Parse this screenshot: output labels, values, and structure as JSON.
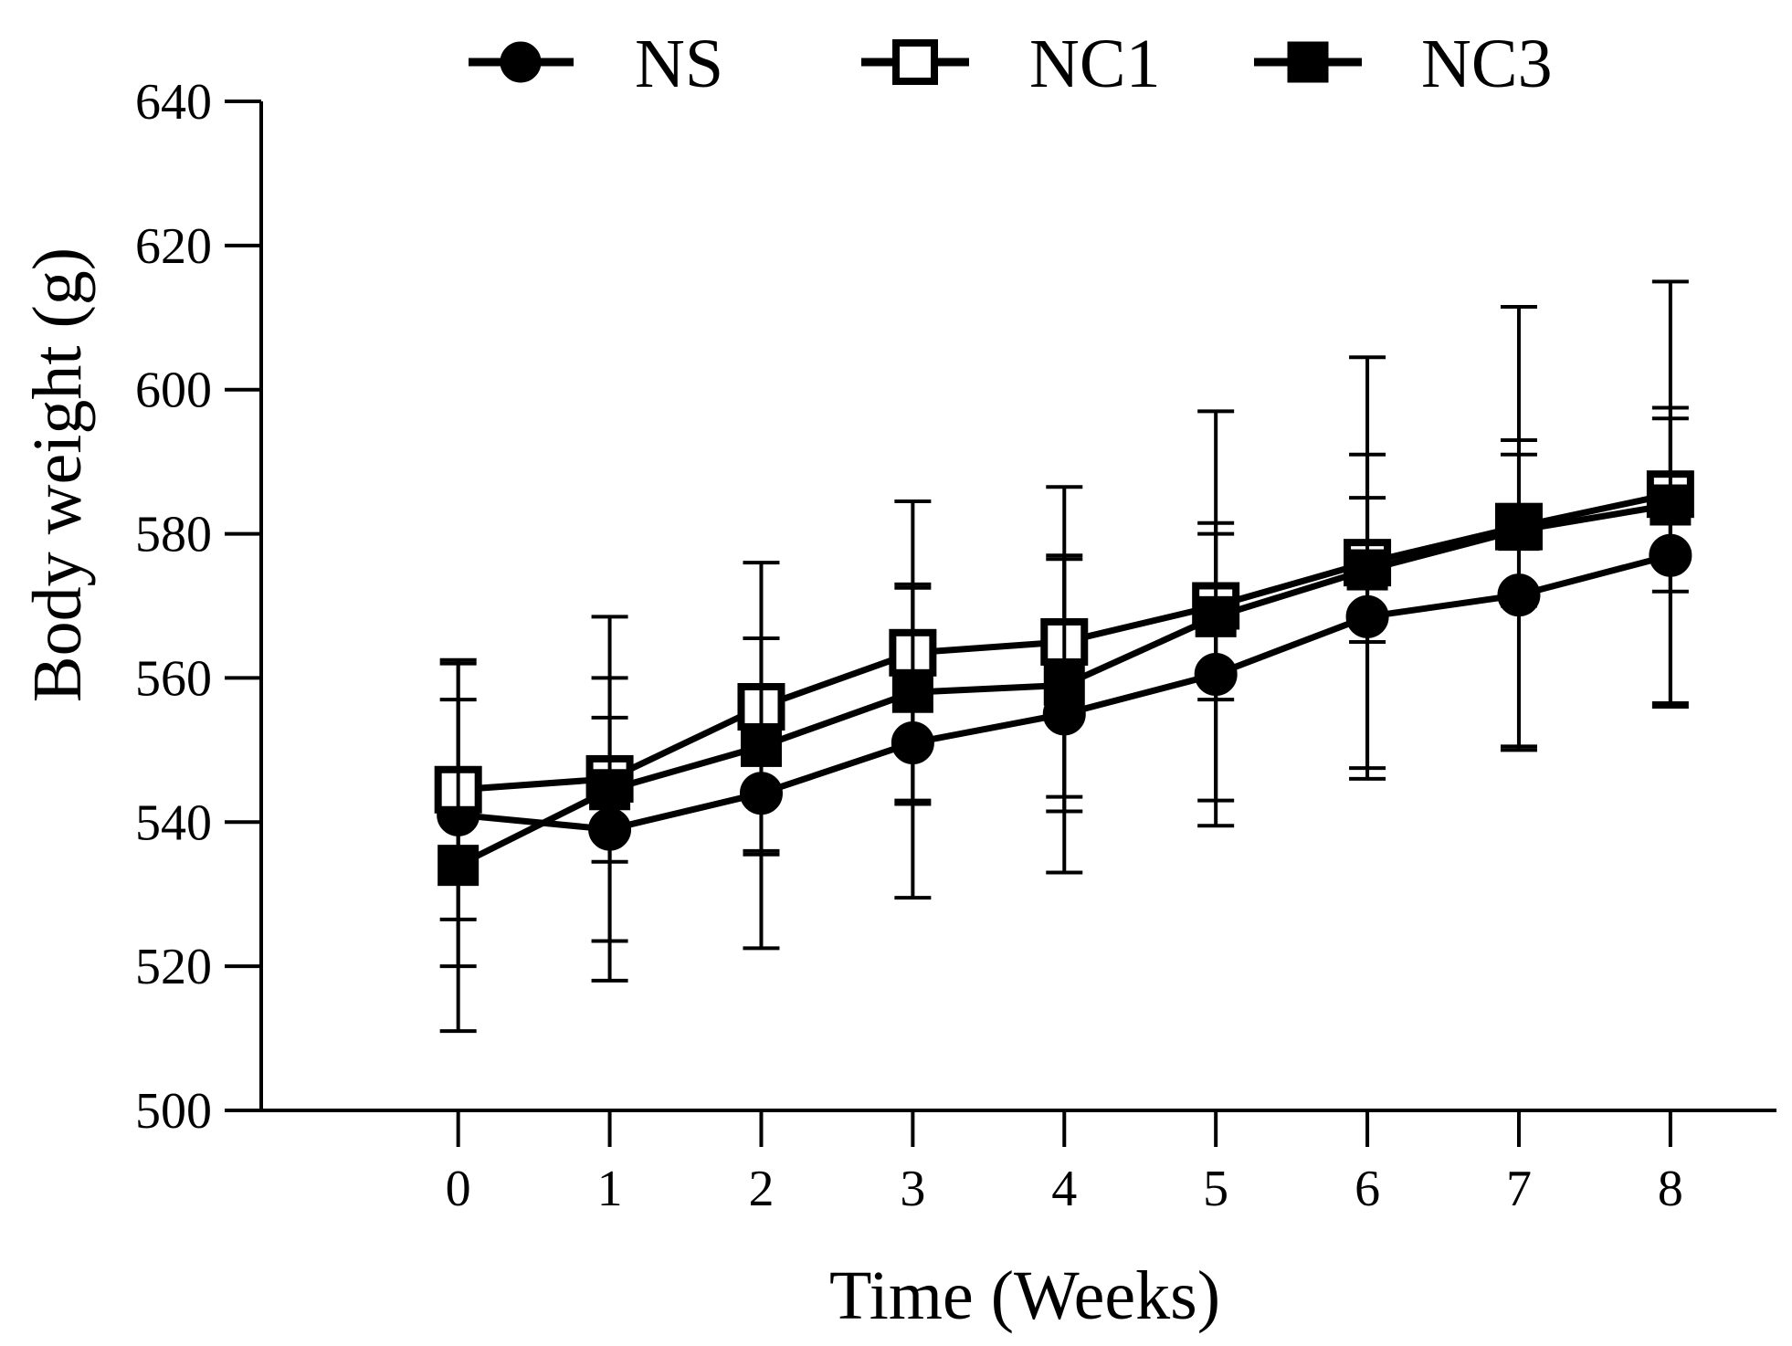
{
  "chart_data": {
    "type": "line",
    "title": "",
    "xlabel": "Time (Weeks)",
    "ylabel": "Body weight (g)",
    "x": [
      0,
      1,
      2,
      3,
      4,
      5,
      6,
      7,
      8
    ],
    "x_tick_labels": [
      "0",
      "1",
      "2",
      "3",
      "4",
      "5",
      "6",
      "7",
      "8"
    ],
    "xlim": [
      -1.3,
      8.7
    ],
    "ylim": [
      500,
      640
    ],
    "y_ticks": [
      500,
      520,
      540,
      560,
      580,
      600,
      620,
      640
    ],
    "y_tick_labels": [
      "500",
      "520",
      "540",
      "560",
      "580",
      "600",
      "620",
      "640"
    ],
    "grid": false,
    "legend_position": "top",
    "series": [
      {
        "name": "NS",
        "marker": "filled-circle",
        "values": [
          541,
          539,
          544,
          551,
          555,
          560.5,
          568.5,
          571.5,
          577
        ],
        "error": [
          21,
          21,
          21.5,
          21.5,
          22,
          21,
          22.5,
          21.5,
          20.5
        ]
      },
      {
        "name": "NC1",
        "marker": "open-square",
        "values": [
          544.5,
          546,
          556,
          563.5,
          565,
          570,
          576,
          581,
          585.5
        ],
        "error": [
          18,
          22.5,
          20,
          21,
          21.5,
          27,
          28.5,
          30.5,
          29.5
        ]
      },
      {
        "name": "NC3",
        "marker": "filled-square",
        "values": [
          534,
          544.5,
          550.5,
          558,
          559,
          568.5,
          575,
          580.5,
          584
        ],
        "error": [
          23,
          10,
          15,
          15,
          17.5,
          11.5,
          10,
          10.5,
          12
        ]
      }
    ],
    "colors": {
      "line": "#000000",
      "background": "#ffffff",
      "marker_open_fill": "#ffffff"
    }
  }
}
